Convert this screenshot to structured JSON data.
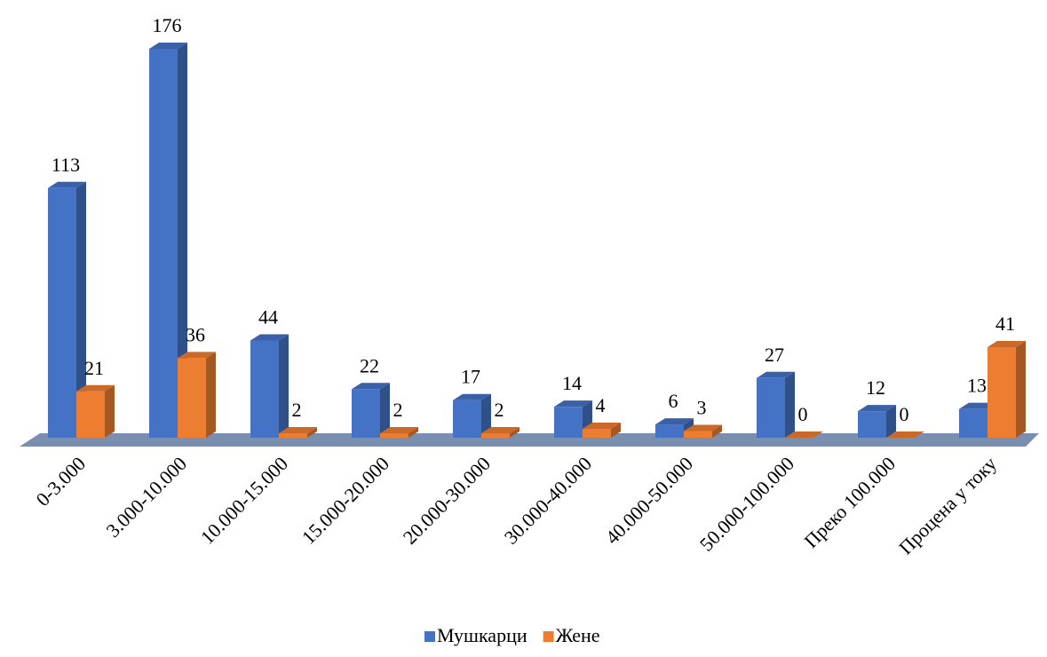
{
  "chart_data": {
    "type": "bar3d",
    "categories": [
      "0-3.000",
      "3.000-10.000",
      "10.000-15.000",
      "15.000-20.000",
      "20.000-30.000",
      "30.000-40.000",
      "40.000-50.000",
      "50.000-100.000",
      "Преко 100.000",
      "Процена у току"
    ],
    "series": [
      {
        "name": "Мушкарци",
        "color": "#4472c4",
        "values": [
          113,
          176,
          44,
          22,
          17,
          14,
          6,
          27,
          12,
          13
        ]
      },
      {
        "name": "Жене",
        "color": "#ed7d31",
        "values": [
          21,
          36,
          2,
          2,
          2,
          4,
          3,
          0,
          0,
          41
        ]
      }
    ],
    "legend": "bottom"
  }
}
